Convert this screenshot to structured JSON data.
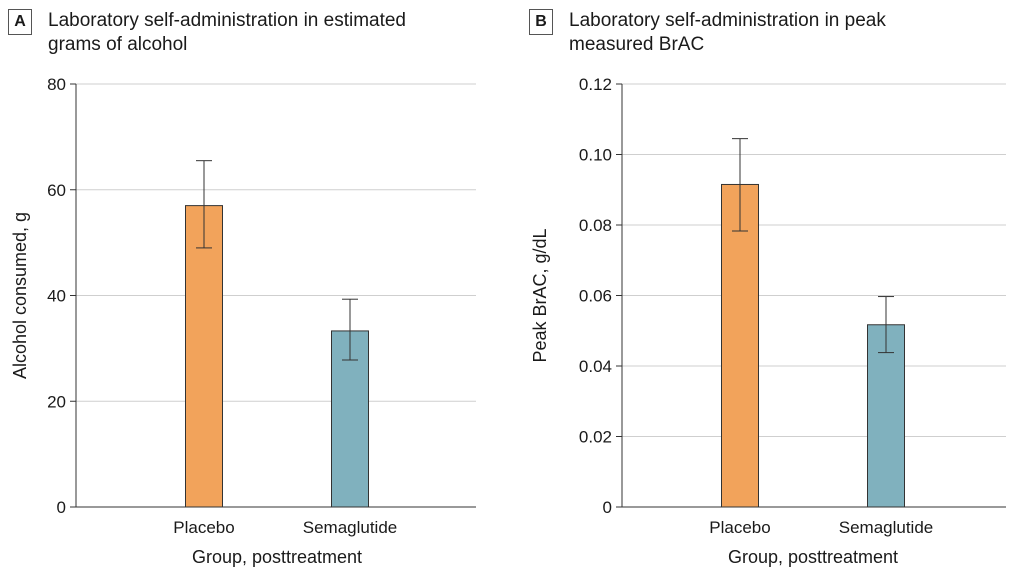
{
  "chart_data": [
    {
      "type": "bar",
      "panel_label": "A",
      "title": "Laboratory self-administration in estimated grams of alcohol",
      "title_lines": [
        "Laboratory self-administration in estimated",
        "grams of alcohol"
      ],
      "xlabel": "Group, posttreatment",
      "ylabel": "Alcohol consumed, g",
      "categories": [
        "Placebo",
        "Semaglutide"
      ],
      "values": [
        57,
        33.3
      ],
      "error_low": [
        49,
        27.8
      ],
      "error_high": [
        65.5,
        39.3
      ],
      "ylim": [
        0,
        80
      ],
      "yticks": [
        0,
        20,
        40,
        60,
        80
      ],
      "ytick_labels": [
        "0",
        "20",
        "40",
        "60",
        "80"
      ],
      "grid": true,
      "colors": [
        "#f2a35b",
        "#80b1be"
      ]
    },
    {
      "type": "bar",
      "panel_label": "B",
      "title": "Laboratory self-administration in peak measured BrAC",
      "title_lines": [
        "Laboratory self-administration in peak",
        "measured BrAC"
      ],
      "xlabel": "Group, posttreatment",
      "ylabel": "Peak BrAC, g/dL",
      "categories": [
        "Placebo",
        "Semaglutide"
      ],
      "values": [
        0.0915,
        0.0517
      ],
      "error_low": [
        0.0783,
        0.0438
      ],
      "error_high": [
        0.1045,
        0.0597
      ],
      "ylim": [
        0,
        0.12
      ],
      "yticks": [
        0,
        0.02,
        0.04,
        0.06,
        0.08,
        0.1,
        0.12
      ],
      "ytick_labels": [
        "0",
        "0.02",
        "0.04",
        "0.06",
        "0.08",
        "0.10",
        "0.12"
      ],
      "grid": true,
      "colors": [
        "#f2a35b",
        "#80b1be"
      ]
    }
  ]
}
